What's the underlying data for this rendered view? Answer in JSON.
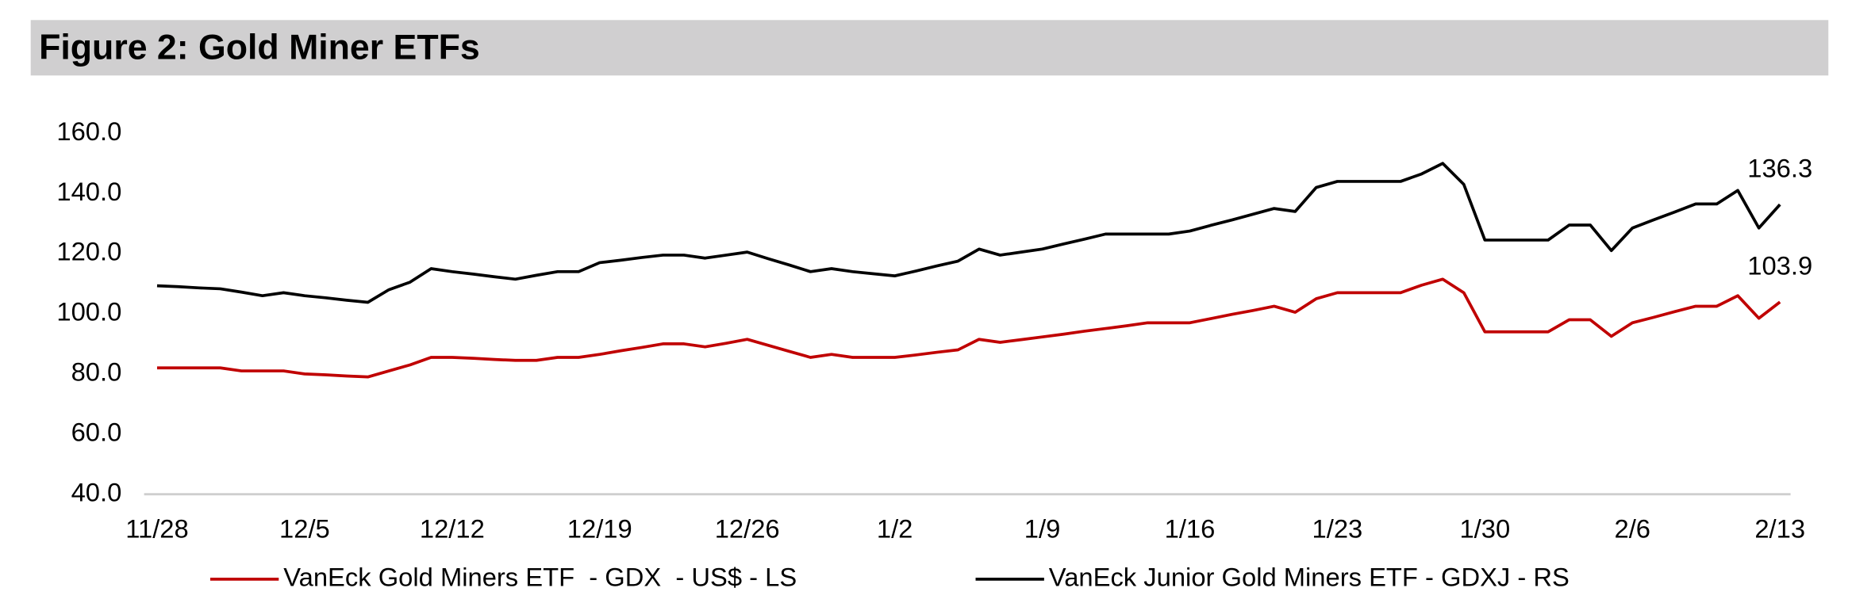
{
  "chart_data": {
    "type": "line",
    "title": "Figure 2: Gold Miner ETFs",
    "categories": [
      "11/28",
      null,
      null,
      null,
      null,
      null,
      null,
      "12/5",
      null,
      null,
      null,
      null,
      null,
      null,
      "12/12",
      null,
      null,
      null,
      null,
      null,
      null,
      "12/19",
      null,
      null,
      null,
      null,
      null,
      null,
      "12/26",
      null,
      null,
      null,
      null,
      null,
      null,
      "1/2",
      null,
      null,
      null,
      null,
      null,
      null,
      "1/9",
      null,
      null,
      null,
      null,
      null,
      null,
      "1/16",
      null,
      null,
      null,
      null,
      null,
      null,
      "1/23",
      null,
      null,
      null,
      null,
      null,
      null,
      "1/30",
      null,
      null,
      null,
      null,
      null,
      null,
      "2/6",
      null,
      null,
      null,
      null,
      null,
      null,
      "2/13"
    ],
    "series": [
      {
        "name": "VanEck Gold Miners ETF  - GDX  - US$ - LS",
        "color": "#c00000",
        "values": [
          82,
          82,
          82,
          82,
          81,
          81,
          81,
          80,
          79.7,
          79.3,
          79,
          81,
          83,
          85.5,
          85.5,
          85.2,
          84.8,
          84.5,
          84.5,
          85.5,
          85.5,
          86.5,
          87.7,
          88.8,
          90,
          90,
          89,
          90.2,
          91.5,
          89.5,
          87.5,
          85.5,
          86.5,
          85.5,
          85.5,
          85.5,
          86.3,
          87.2,
          88,
          91.5,
          90.5,
          91.4,
          92.3,
          93.2,
          94.2,
          95.1,
          96,
          97,
          97,
          97,
          98.4,
          99.8,
          101.1,
          102.5,
          100.5,
          105,
          107,
          107,
          107,
          107,
          109.5,
          111.5,
          107,
          94,
          94,
          94,
          94,
          98,
          98,
          92.5,
          97,
          98.8,
          100.7,
          102.5,
          102.5,
          106,
          98.5,
          103.9
        ]
      },
      {
        "name": "VanEck Junior Gold Miners ETF - GDXJ - RS",
        "color": "#000000",
        "values": [
          109.3,
          109,
          108.6,
          108.3,
          107.2,
          106,
          107,
          106,
          105.3,
          104.5,
          103.8,
          108,
          110.5,
          115,
          114,
          113.2,
          112.3,
          111.5,
          112.8,
          114,
          114,
          117,
          117.8,
          118.7,
          119.5,
          119.5,
          118.5,
          119.5,
          120.5,
          118.3,
          116.2,
          114,
          115,
          114,
          113.3,
          112.6,
          114.2,
          115.9,
          117.5,
          121.5,
          119.5,
          120.5,
          121.5,
          123.2,
          124.8,
          126.5,
          126.5,
          126.5,
          126.5,
          127.5,
          129.4,
          131.2,
          133.1,
          135,
          134,
          142,
          144,
          144,
          144,
          144,
          146.5,
          150,
          143,
          124.5,
          124.5,
          124.5,
          124.5,
          129.5,
          129.5,
          121,
          128.5,
          131.2,
          133.8,
          136.5,
          136.5,
          141,
          128.5,
          136.3
        ]
      }
    ],
    "ylim": [
      40,
      160
    ],
    "yticks": [
      {
        "value": 40,
        "label": "40.0"
      },
      {
        "value": 60,
        "label": "60.0"
      },
      {
        "value": 80,
        "label": "80.0"
      },
      {
        "value": 100,
        "label": "100.0"
      },
      {
        "value": 120,
        "label": "120.0"
      },
      {
        "value": 140,
        "label": "140.0"
      },
      {
        "value": 160,
        "label": "160.0"
      }
    ],
    "grid": false,
    "legend": "bottom"
  }
}
